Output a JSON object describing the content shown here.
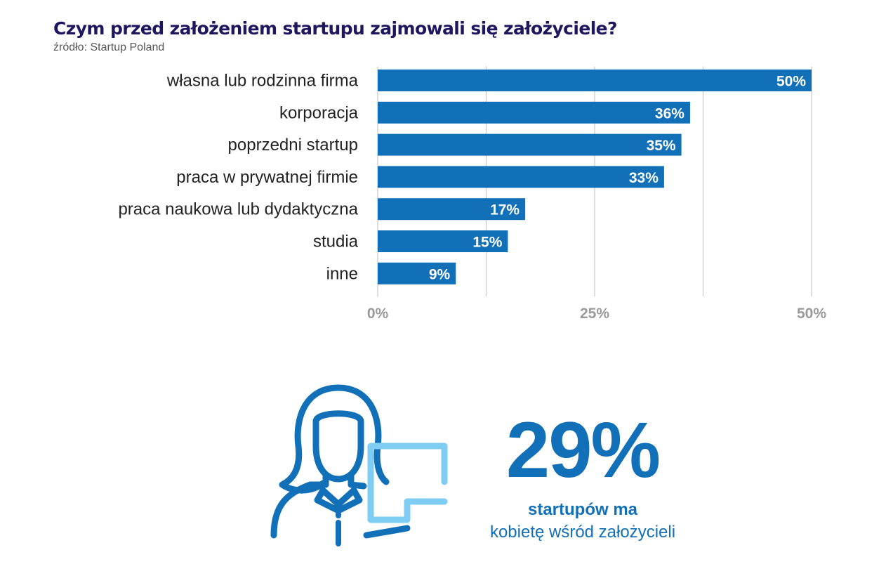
{
  "header": {
    "title": "Czym przed założeniem startupu zajmowali się założyciele?",
    "source": "źródło: Startup Poland"
  },
  "chart_data": {
    "type": "bar",
    "orientation": "horizontal",
    "categories": [
      "własna lub rodzinna firma",
      "korporacja",
      "poprzedni startup",
      "praca w prywatnej firmie",
      "praca naukowa lub dydaktyczna",
      "studia",
      "inne"
    ],
    "values": [
      50,
      36,
      35,
      33,
      17,
      15,
      9
    ],
    "value_labels": [
      "50%",
      "36%",
      "35%",
      "33%",
      "17%",
      "15%",
      "9%"
    ],
    "xlim": [
      0,
      50
    ],
    "x_ticks": [
      0,
      25,
      50
    ],
    "x_tick_labels": [
      "0%",
      "25%",
      "50%"
    ],
    "grid": true,
    "bar_color": "#1170b8"
  },
  "stat": {
    "value": "29%",
    "line1": "startupów ma",
    "line2": "kobietę wśród założycieli"
  },
  "icon": {
    "name": "woman-founder-icon",
    "primary_color": "#1170b8",
    "accent_color": "#7fcdf2"
  }
}
